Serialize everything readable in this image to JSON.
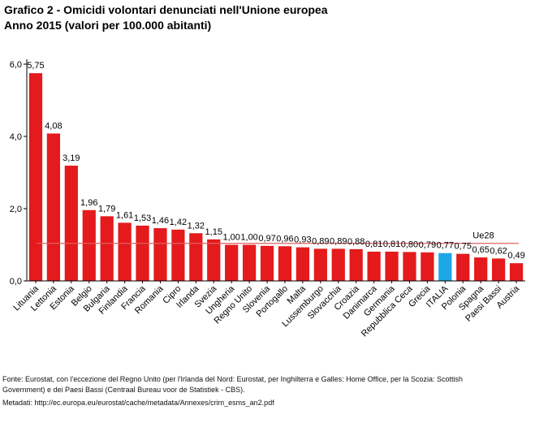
{
  "header": {
    "title": "Grafico 2 - Omicidi volontari denunciati nell'Unione europea",
    "subtitle": "Anno 2015 (valori per 100.000 abitanti)"
  },
  "chart_data": {
    "type": "bar",
    "title": "Grafico 2 - Omicidi volontari denunciati nell'Unione europea",
    "subtitle": "Anno 2015 (valori per 100.000 abitanti)",
    "xlabel": "",
    "ylabel": "",
    "ylim": [
      0,
      6
    ],
    "yticks": [
      0,
      2,
      4,
      6
    ],
    "ytick_labels": [
      "0,0",
      "2,0",
      "4,0",
      "6,0"
    ],
    "categories": [
      "Lituania",
      "Lettonia",
      "Estonia",
      "Belgio",
      "Bulgaria",
      "Finlandia",
      "Francia",
      "Romania",
      "Cipro",
      "Irlanda",
      "Svezia",
      "Ungheria",
      "Regno Unito",
      "Slovenia",
      "Portogallo",
      "Malta",
      "Lussemburgo",
      "Slovacchia",
      "Croazia",
      "Danimarca",
      "Germania",
      "Repubblica Ceca",
      "Grecia",
      "ITALIA",
      "Polonia",
      "Spagna",
      "Paesi Bassi",
      "Austria"
    ],
    "values": [
      5.75,
      4.08,
      3.19,
      1.96,
      1.79,
      1.61,
      1.53,
      1.46,
      1.42,
      1.32,
      1.15,
      1.0,
      1.0,
      0.97,
      0.96,
      0.93,
      0.89,
      0.89,
      0.88,
      0.81,
      0.81,
      0.8,
      0.79,
      0.77,
      0.75,
      0.65,
      0.62,
      0.49
    ],
    "value_labels": [
      "5,75",
      "4,08",
      "3,19",
      "1,96",
      "1,79",
      "1,61",
      "1,53",
      "1,46",
      "1,42",
      "1,32",
      "1,15",
      "1,00",
      "1,00",
      "0,97",
      "0,96",
      "0,93",
      "0,89",
      "0,89",
      "0,88",
      "0,81",
      "0,81",
      "0,80",
      "0,79",
      "0,77",
      "0,75",
      "0,65",
      "0,62",
      "0,49"
    ],
    "highlight_category": "ITALIA",
    "colors": {
      "bar": "#e41a1c",
      "highlight": "#1ea7e8",
      "reference": "#e06060",
      "axis": "#000000"
    },
    "reference_line": {
      "label": "Ue28",
      "value": 1.04
    },
    "grid": false
  },
  "footer": {
    "source_line1": "Fonte: Eurostat, con l'eccezione del Regno Unito (per l'Irlanda del Nord: Eurostat, per Inghilterra e Galles: Home Office, per la Scozia: Scottish",
    "source_line2": "Government) e dei Paesi Bassi (Centraal Bureau voor de Statistiek - CBS).",
    "metadata": "Metadati: http://ec.europa.eu/eurostat/cache/metadata/Annexes/crim_esms_an2.pdf"
  }
}
